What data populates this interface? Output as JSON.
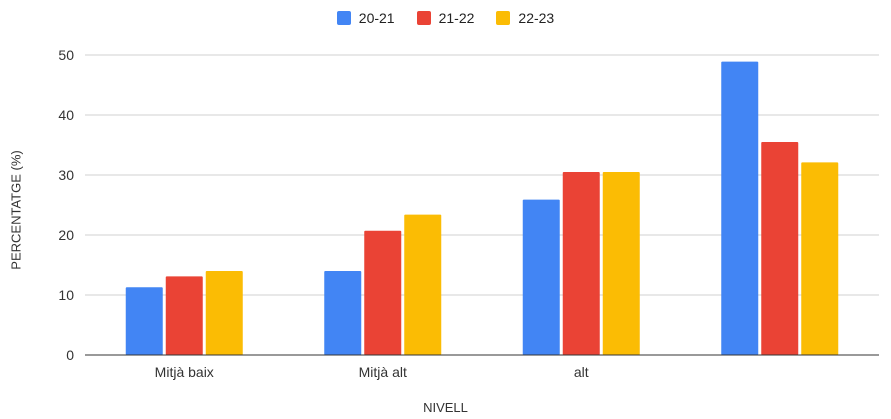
{
  "chart_data": {
    "type": "bar",
    "categories": [
      "Mitjà baix",
      "Mitjà alt",
      "alt",
      ""
    ],
    "series": [
      {
        "name": "20-21",
        "color": "#4285f4",
        "values": [
          11.3,
          14.0,
          25.9,
          48.9
        ]
      },
      {
        "name": "21-22",
        "color": "#ea4335",
        "values": [
          13.1,
          20.7,
          30.5,
          35.5
        ]
      },
      {
        "name": "22-23",
        "color": "#fbbc04",
        "values": [
          14.0,
          23.4,
          30.5,
          32.1
        ]
      }
    ],
    "xlabel": "NIVELL",
    "ylabel": "PERCENTATGE (%)",
    "ylim": [
      0,
      50
    ],
    "yticks": [
      0,
      10,
      20,
      30,
      40,
      50
    ],
    "grid": true,
    "legend_position": "top-center"
  }
}
